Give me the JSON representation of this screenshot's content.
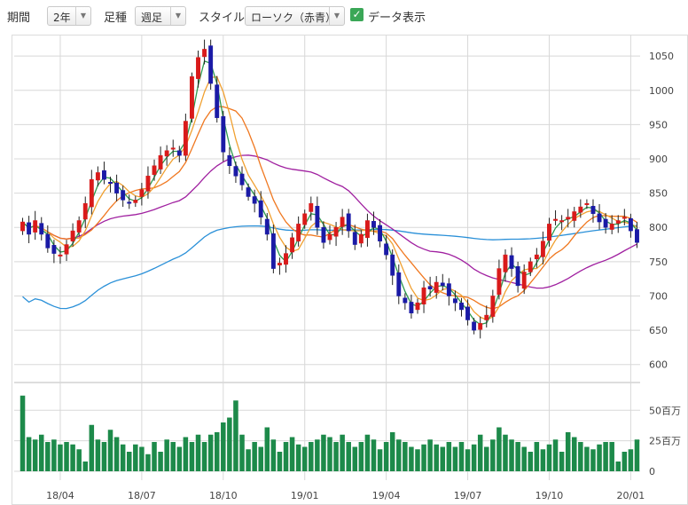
{
  "toolbar": {
    "period_label": "期間",
    "period_value": "2年",
    "bar_label": "足種",
    "bar_value": "週足",
    "style_label": "スタイル",
    "style_value": "ローソク（赤青）",
    "data_display_label": "データ表示",
    "data_display_checked": true,
    "dropdown_icon": "triangle-down-icon",
    "check_icon": "check-icon"
  },
  "chart_data": {
    "type": "candlestick",
    "price_ticks": [
      600,
      650,
      700,
      750,
      800,
      850,
      900,
      950,
      1000,
      1050
    ],
    "price_range": [
      575,
      1080
    ],
    "volume_ticks": [
      {
        "value": 0,
        "label": "0"
      },
      {
        "value": 25,
        "label": "25百万"
      },
      {
        "value": 50,
        "label": "50百万"
      }
    ],
    "volume_range": [
      0,
      72
    ],
    "x_labels": [
      {
        "index": 6,
        "label": "18/04"
      },
      {
        "index": 19,
        "label": "18/07"
      },
      {
        "index": 32,
        "label": "18/10"
      },
      {
        "index": 45,
        "label": "19/01"
      },
      {
        "index": 58,
        "label": "19/04"
      },
      {
        "index": 71,
        "label": "19/07"
      },
      {
        "index": 84,
        "label": "19/10"
      },
      {
        "index": 97,
        "label": "20/01"
      }
    ],
    "colors": {
      "up": "#d91a1a",
      "down": "#1a1aa6",
      "volume": "#1d8a4a",
      "ma_short": "#2e9a4e",
      "ma_mid": "#f0a030",
      "ma_long": "#f07820",
      "ma_52": "#a020a0",
      "ma_100": "#2a90d8",
      "grid": "#d8d8d8"
    },
    "closes": [
      808,
      790,
      810,
      790,
      770,
      762,
      760,
      775,
      795,
      810,
      835,
      870,
      880,
      870,
      865,
      850,
      840,
      835,
      840,
      855,
      875,
      890,
      905,
      912,
      916,
      905,
      955,
      1020,
      1048,
      1060,
      1010,
      960,
      910,
      890,
      875,
      862,
      845,
      835,
      815,
      790,
      740,
      748,
      762,
      785,
      805,
      820,
      835,
      800,
      778,
      790,
      800,
      815,
      795,
      775,
      790,
      810,
      800,
      780,
      760,
      730,
      700,
      690,
      675,
      690,
      712,
      710,
      720,
      715,
      700,
      690,
      680,
      665,
      650,
      660,
      672,
      700,
      740,
      760,
      740,
      715,
      735,
      750,
      760,
      780,
      805,
      812,
      810,
      815,
      823,
      830,
      835,
      820,
      808,
      800,
      805,
      810,
      815,
      795,
      778
    ],
    "volumes": [
      62,
      28,
      26,
      30,
      24,
      26,
      22,
      24,
      22,
      18,
      8,
      38,
      26,
      24,
      34,
      28,
      22,
      16,
      22,
      20,
      14,
      24,
      16,
      26,
      24,
      20,
      28,
      24,
      30,
      24,
      30,
      32,
      40,
      44,
      58,
      30,
      18,
      24,
      20,
      36,
      26,
      16,
      24,
      28,
      22,
      20,
      24,
      26,
      30,
      28,
      24,
      30,
      24,
      20,
      24,
      30,
      26,
      18,
      24,
      32,
      26,
      24,
      20,
      18,
      22,
      26,
      22,
      20,
      24,
      20,
      24,
      18,
      22,
      30,
      20,
      26,
      36,
      30,
      26,
      24,
      20,
      16,
      24,
      18,
      22,
      26,
      16,
      32,
      28,
      24,
      20,
      18,
      22,
      24,
      24,
      8,
      16,
      18,
      26
    ]
  }
}
